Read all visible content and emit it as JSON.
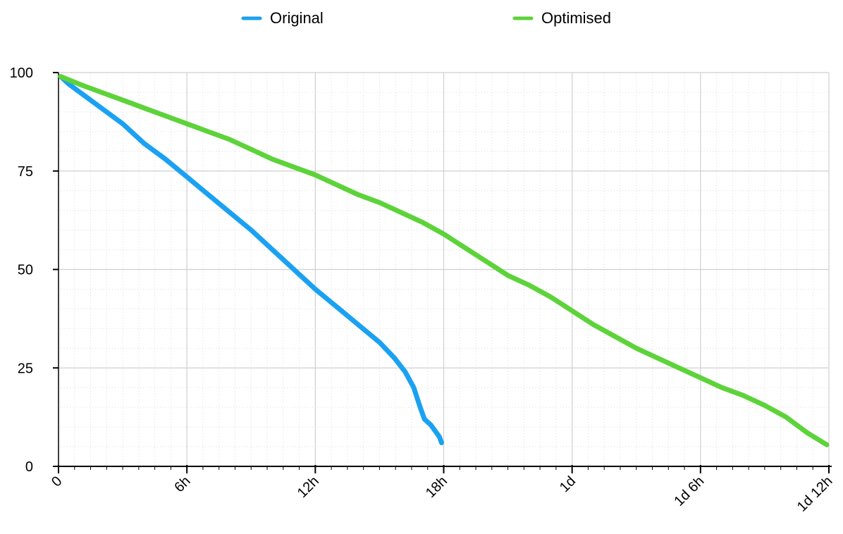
{
  "chart_data": {
    "type": "line",
    "title": "",
    "xlabel": "",
    "ylabel": "",
    "x_unit": "hours",
    "xlim": [
      0,
      36
    ],
    "ylim": [
      0,
      100
    ],
    "x_ticks": [
      {
        "value": 0,
        "label": "0"
      },
      {
        "value": 6,
        "label": "6h"
      },
      {
        "value": 12,
        "label": "12h"
      },
      {
        "value": 18,
        "label": "18h"
      },
      {
        "value": 24,
        "label": "1d"
      },
      {
        "value": 30,
        "label": "1d 6h"
      },
      {
        "value": 36,
        "label": "1d 12h"
      }
    ],
    "y_ticks": [
      0,
      25,
      50,
      75,
      100
    ],
    "grid": true,
    "legend_position": "top-center",
    "series": [
      {
        "name": "Original",
        "color": "#1ba1f2",
        "x": [
          0.1,
          0.5,
          1,
          2,
          3,
          4,
          5,
          6,
          7,
          8,
          9,
          10,
          11,
          12,
          13,
          14,
          15,
          15.7,
          16.2,
          16.6,
          16.9,
          17.1,
          17.4,
          17.6,
          17.8,
          17.9
        ],
        "y": [
          99,
          97,
          95,
          91,
          87,
          82,
          78,
          73.5,
          69,
          64.5,
          60,
          55,
          50,
          45,
          40.5,
          36,
          31.5,
          27.5,
          24,
          20,
          15,
          12,
          10.5,
          9,
          7.5,
          6
        ]
      },
      {
        "name": "Optimised",
        "color": "#5dd33a",
        "x": [
          0.1,
          1,
          2,
          3,
          4,
          5,
          6,
          7,
          8,
          9,
          10,
          11,
          12,
          13,
          14,
          15,
          16,
          17,
          18,
          19,
          20,
          21,
          22,
          23,
          24,
          25,
          26,
          27,
          28,
          29,
          30,
          31,
          32,
          33,
          34,
          35,
          35.9
        ],
        "y": [
          99,
          97,
          95,
          93,
          91,
          89,
          87,
          85,
          83,
          80.5,
          78,
          76,
          74,
          71.5,
          69,
          67,
          64.5,
          62,
          59,
          55.5,
          52,
          48.5,
          46,
          43,
          39.5,
          36,
          33,
          30,
          27.5,
          25,
          22.5,
          20,
          18,
          15.5,
          12.5,
          8.5,
          5.5
        ]
      }
    ]
  }
}
